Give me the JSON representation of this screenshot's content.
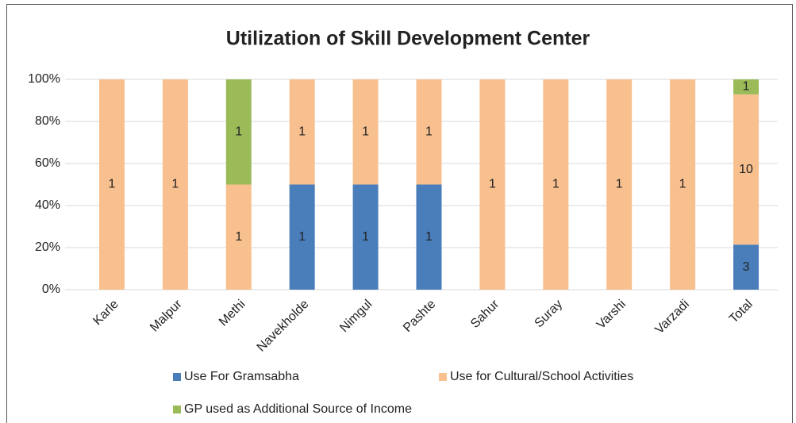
{
  "chart_data": {
    "type": "bar",
    "stacking": "percent",
    "title": "Utilization of Skill Development Center",
    "categories": [
      "Karle",
      "Malpur",
      "Methi",
      "Navekholde",
      "Nimgul",
      "Pashte",
      "Sahur",
      "Suray",
      "Varshi",
      "Varzadi",
      "Total"
    ],
    "series": [
      {
        "name": "Use For Gramsabha",
        "color": "#4a7ebb",
        "values": [
          0,
          0,
          0,
          1,
          1,
          1,
          0,
          0,
          0,
          0,
          3
        ]
      },
      {
        "name": "Use for Cultural/School Activities",
        "color": "#f9c08f",
        "values": [
          1,
          1,
          1,
          1,
          1,
          1,
          1,
          1,
          1,
          1,
          10
        ]
      },
      {
        "name": "GP used as Additional Source of Income",
        "color": "#9bbb59",
        "values": [
          0,
          0,
          1,
          0,
          0,
          0,
          0,
          0,
          0,
          0,
          1
        ]
      }
    ],
    "ylim": [
      0,
      100
    ],
    "yticks": [
      {
        "value": 0,
        "label": "0%"
      },
      {
        "value": 20,
        "label": "20%"
      },
      {
        "value": 40,
        "label": "40%"
      },
      {
        "value": 60,
        "label": "60%"
      },
      {
        "value": 80,
        "label": "80%"
      },
      {
        "value": 100,
        "label": "100%"
      }
    ],
    "grid": true
  }
}
